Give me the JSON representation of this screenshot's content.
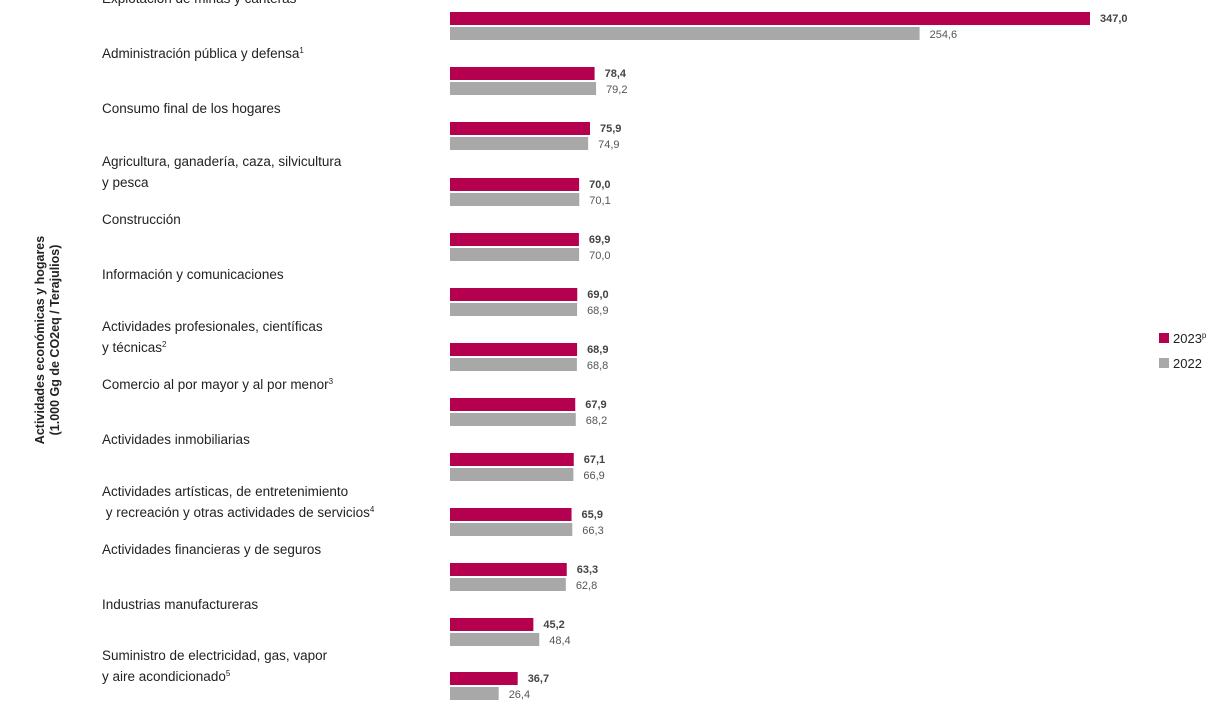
{
  "chart_data": {
    "type": "bar",
    "orientation": "horizontal",
    "ylabel_lines": [
      "Actividades económicas y hogares",
      "(1.000 Gg de CO2eq / Terajulios)"
    ],
    "categories": [
      {
        "lines": [
          "Explotación de minas y canteras"
        ],
        "sup": ""
      },
      {
        "lines": [
          "Administración pública y defensa"
        ],
        "sup": "1"
      },
      {
        "lines": [
          "Consumo final de los hogares"
        ],
        "sup": ""
      },
      {
        "lines": [
          "Agricultura, ganadería, caza, silvicultura",
          "y pesca"
        ],
        "sup": ""
      },
      {
        "lines": [
          "Construcción"
        ],
        "sup": ""
      },
      {
        "lines": [
          "Información y comunicaciones"
        ],
        "sup": ""
      },
      {
        "lines": [
          "Actividades profesionales, científicas",
          "y técnicas"
        ],
        "sup": "2"
      },
      {
        "lines": [
          "Comercio al por mayor y al por menor"
        ],
        "sup": "3"
      },
      {
        "lines": [
          "Actividades inmobiliarias"
        ],
        "sup": ""
      },
      {
        "lines": [
          "Actividades artísticas, de entretenimiento",
          " y recreación y otras actividades de servicios"
        ],
        "sup": "4"
      },
      {
        "lines": [
          "Actividades financieras y de seguros"
        ],
        "sup": ""
      },
      {
        "lines": [
          "Industrias  manufactureras"
        ],
        "sup": ""
      },
      {
        "lines": [
          "Suministro de electricidad, gas, vapor",
          "y aire acondicionado"
        ],
        "sup": "5"
      }
    ],
    "series": [
      {
        "name": "2023",
        "name_sup": "p",
        "color": "#b5004f",
        "values": [
          347.0,
          78.4,
          75.9,
          70.0,
          69.9,
          69.0,
          68.9,
          67.9,
          67.1,
          65.9,
          63.3,
          45.2,
          36.7
        ],
        "labels": [
          "347,0",
          "78,4",
          "75,9",
          "70,0",
          "69,9",
          "69,0",
          "68,9",
          "67,9",
          "67,1",
          "65,9",
          "63,3",
          "45,2",
          "36,7"
        ]
      },
      {
        "name": "2022",
        "name_sup": "",
        "color": "#a8a8a8",
        "values": [
          254.6,
          79.2,
          74.9,
          70.1,
          70.0,
          68.9,
          68.8,
          68.2,
          66.9,
          66.3,
          62.8,
          48.4,
          26.4
        ],
        "labels": [
          "254,6",
          "79,2",
          "74,9",
          "70,1",
          "70,0",
          "68,9",
          "68,8",
          "68,2",
          "66,9",
          "66,3",
          "62,8",
          "48,4",
          "26,4"
        ]
      }
    ],
    "xlim": [
      0,
      347.0
    ],
    "grid": false,
    "legend_position": "right"
  }
}
